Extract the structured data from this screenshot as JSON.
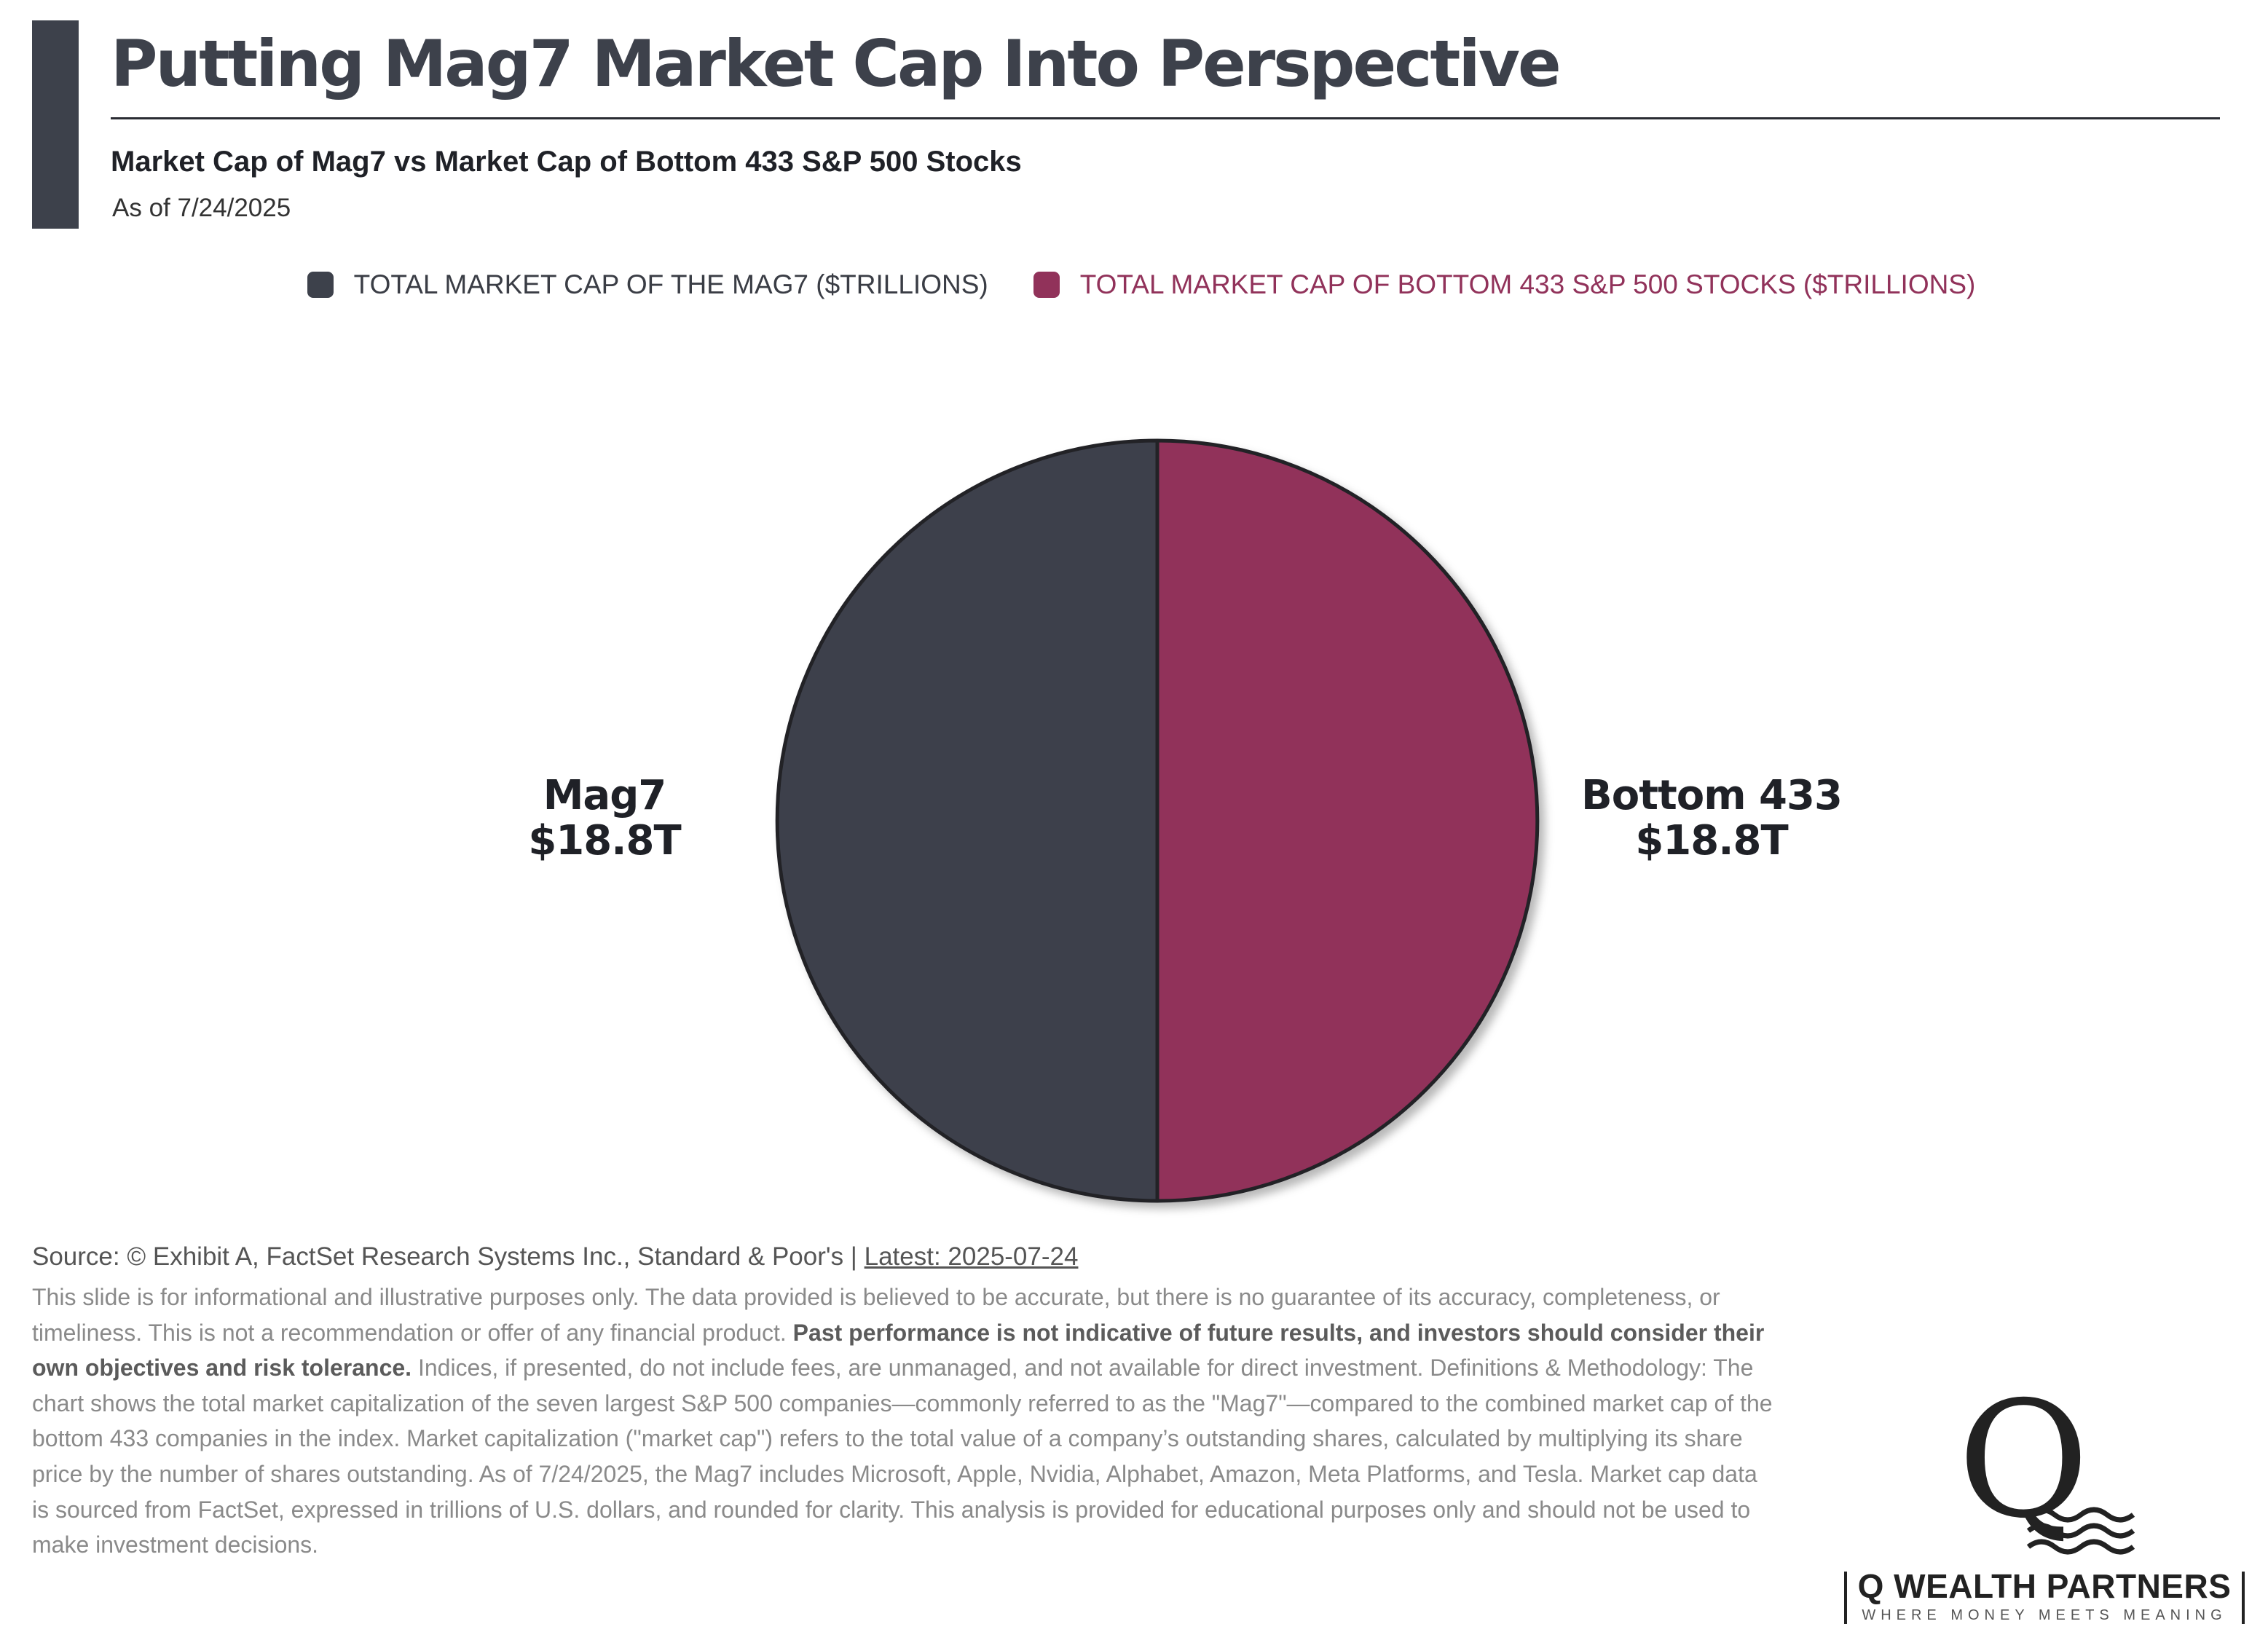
{
  "header": {
    "title": "Putting Mag7 Market Cap Into Perspective",
    "subtitle": "Market Cap of Mag7 vs Market Cap of Bottom 433 S&P 500 Stocks",
    "as_of": "As of 7/24/2025"
  },
  "chart_data": {
    "type": "pie",
    "title": "Putting Mag7 Market Cap Into Perspective",
    "legend_position": "top-center",
    "series": [
      {
        "name": "TOTAL MARKET CAP OF THE MAG7 ($TRILLIONS)",
        "label": "Mag7",
        "value": 18.8,
        "value_label": "$18.8T",
        "color": "#3d414b"
      },
      {
        "name": "TOTAL MARKET CAP OF BOTTOM 433 S&P 500 STOCKS ($TRILLIONS)",
        "label": "Bottom 433",
        "value": 18.8,
        "value_label": "$18.8T",
        "color": "#91325a"
      }
    ]
  },
  "footer": {
    "source_prefix": "Source: © Exhibit A, FactSet Research Systems Inc., Standard & Poor's | ",
    "latest": "Latest: 2025-07-24",
    "disclaimer_part1": "This slide is for informational and illustrative purposes only. The data provided is believed to be accurate, but there is no guarantee of its accuracy, completeness, or timeliness. This is not a recommendation or offer of any financial product. ",
    "disclaimer_bold": "Past performance is not indicative of future results, and investors should consider their own objectives and risk tolerance.",
    "disclaimer_part2": " Indices, if presented, do not include fees, are unmanaged, and not available for direct investment. Definitions & Methodology: The chart shows the total market capitalization of the seven largest S&P 500 companies—commonly referred to as the \"Mag7\"—compared to the combined market cap of the bottom 433 companies in the index. Market capitalization (\"market cap\") refers to the total value of a company’s outstanding shares, calculated by multiplying its share price by the number of shares outstanding. As of 7/24/2025, the Mag7 includes Microsoft, Apple, Nvidia, Alphabet, Amazon, Meta Platforms, and Tesla. Market cap data is sourced from FactSet, expressed in trillions of U.S. dollars, and rounded for clarity. This analysis is provided for educational purposes only and should not be used to make investment decisions."
  },
  "logo": {
    "letter": "Q",
    "name": "Q WEALTH PARTNERS",
    "tagline": "WHERE MONEY MEETS MEANING"
  }
}
